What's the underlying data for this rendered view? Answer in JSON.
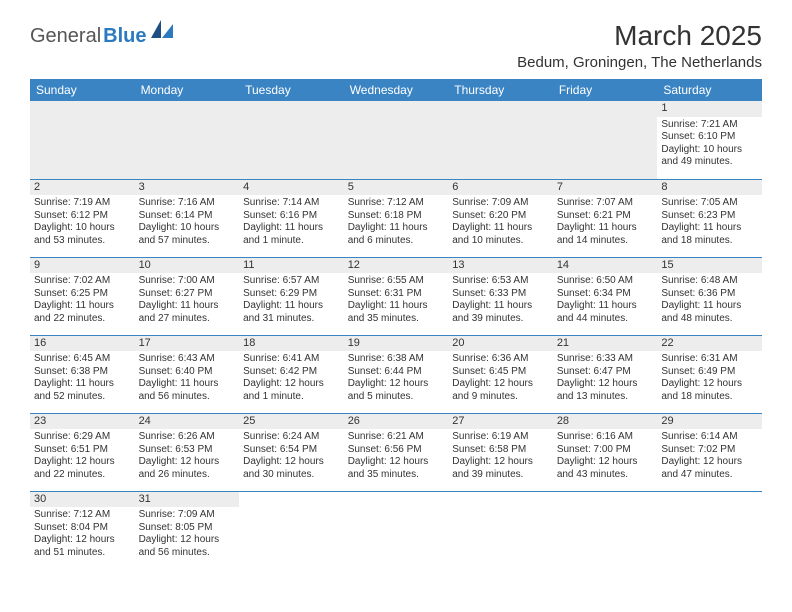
{
  "brand": {
    "part1": "General",
    "part2": "Blue"
  },
  "colors": {
    "header_bg": "#3a84c4",
    "header_fg": "#ffffff",
    "daynum_bg": "#ededed",
    "border": "#3a84c4",
    "brand_gray": "#555555",
    "brand_blue": "#2b7ac0"
  },
  "title": "March 2025",
  "location": "Bedum, Groningen, The Netherlands",
  "weekdays": [
    "Sunday",
    "Monday",
    "Tuesday",
    "Wednesday",
    "Thursday",
    "Friday",
    "Saturday"
  ],
  "weeks": [
    [
      null,
      null,
      null,
      null,
      null,
      null,
      {
        "day": "1",
        "sunrise": "Sunrise: 7:21 AM",
        "sunset": "Sunset: 6:10 PM",
        "daylight": "Daylight: 10 hours and 49 minutes."
      }
    ],
    [
      {
        "day": "2",
        "sunrise": "Sunrise: 7:19 AM",
        "sunset": "Sunset: 6:12 PM",
        "daylight": "Daylight: 10 hours and 53 minutes."
      },
      {
        "day": "3",
        "sunrise": "Sunrise: 7:16 AM",
        "sunset": "Sunset: 6:14 PM",
        "daylight": "Daylight: 10 hours and 57 minutes."
      },
      {
        "day": "4",
        "sunrise": "Sunrise: 7:14 AM",
        "sunset": "Sunset: 6:16 PM",
        "daylight": "Daylight: 11 hours and 1 minute."
      },
      {
        "day": "5",
        "sunrise": "Sunrise: 7:12 AM",
        "sunset": "Sunset: 6:18 PM",
        "daylight": "Daylight: 11 hours and 6 minutes."
      },
      {
        "day": "6",
        "sunrise": "Sunrise: 7:09 AM",
        "sunset": "Sunset: 6:20 PM",
        "daylight": "Daylight: 11 hours and 10 minutes."
      },
      {
        "day": "7",
        "sunrise": "Sunrise: 7:07 AM",
        "sunset": "Sunset: 6:21 PM",
        "daylight": "Daylight: 11 hours and 14 minutes."
      },
      {
        "day": "8",
        "sunrise": "Sunrise: 7:05 AM",
        "sunset": "Sunset: 6:23 PM",
        "daylight": "Daylight: 11 hours and 18 minutes."
      }
    ],
    [
      {
        "day": "9",
        "sunrise": "Sunrise: 7:02 AM",
        "sunset": "Sunset: 6:25 PM",
        "daylight": "Daylight: 11 hours and 22 minutes."
      },
      {
        "day": "10",
        "sunrise": "Sunrise: 7:00 AM",
        "sunset": "Sunset: 6:27 PM",
        "daylight": "Daylight: 11 hours and 27 minutes."
      },
      {
        "day": "11",
        "sunrise": "Sunrise: 6:57 AM",
        "sunset": "Sunset: 6:29 PM",
        "daylight": "Daylight: 11 hours and 31 minutes."
      },
      {
        "day": "12",
        "sunrise": "Sunrise: 6:55 AM",
        "sunset": "Sunset: 6:31 PM",
        "daylight": "Daylight: 11 hours and 35 minutes."
      },
      {
        "day": "13",
        "sunrise": "Sunrise: 6:53 AM",
        "sunset": "Sunset: 6:33 PM",
        "daylight": "Daylight: 11 hours and 39 minutes."
      },
      {
        "day": "14",
        "sunrise": "Sunrise: 6:50 AM",
        "sunset": "Sunset: 6:34 PM",
        "daylight": "Daylight: 11 hours and 44 minutes."
      },
      {
        "day": "15",
        "sunrise": "Sunrise: 6:48 AM",
        "sunset": "Sunset: 6:36 PM",
        "daylight": "Daylight: 11 hours and 48 minutes."
      }
    ],
    [
      {
        "day": "16",
        "sunrise": "Sunrise: 6:45 AM",
        "sunset": "Sunset: 6:38 PM",
        "daylight": "Daylight: 11 hours and 52 minutes."
      },
      {
        "day": "17",
        "sunrise": "Sunrise: 6:43 AM",
        "sunset": "Sunset: 6:40 PM",
        "daylight": "Daylight: 11 hours and 56 minutes."
      },
      {
        "day": "18",
        "sunrise": "Sunrise: 6:41 AM",
        "sunset": "Sunset: 6:42 PM",
        "daylight": "Daylight: 12 hours and 1 minute."
      },
      {
        "day": "19",
        "sunrise": "Sunrise: 6:38 AM",
        "sunset": "Sunset: 6:44 PM",
        "daylight": "Daylight: 12 hours and 5 minutes."
      },
      {
        "day": "20",
        "sunrise": "Sunrise: 6:36 AM",
        "sunset": "Sunset: 6:45 PM",
        "daylight": "Daylight: 12 hours and 9 minutes."
      },
      {
        "day": "21",
        "sunrise": "Sunrise: 6:33 AM",
        "sunset": "Sunset: 6:47 PM",
        "daylight": "Daylight: 12 hours and 13 minutes."
      },
      {
        "day": "22",
        "sunrise": "Sunrise: 6:31 AM",
        "sunset": "Sunset: 6:49 PM",
        "daylight": "Daylight: 12 hours and 18 minutes."
      }
    ],
    [
      {
        "day": "23",
        "sunrise": "Sunrise: 6:29 AM",
        "sunset": "Sunset: 6:51 PM",
        "daylight": "Daylight: 12 hours and 22 minutes."
      },
      {
        "day": "24",
        "sunrise": "Sunrise: 6:26 AM",
        "sunset": "Sunset: 6:53 PM",
        "daylight": "Daylight: 12 hours and 26 minutes."
      },
      {
        "day": "25",
        "sunrise": "Sunrise: 6:24 AM",
        "sunset": "Sunset: 6:54 PM",
        "daylight": "Daylight: 12 hours and 30 minutes."
      },
      {
        "day": "26",
        "sunrise": "Sunrise: 6:21 AM",
        "sunset": "Sunset: 6:56 PM",
        "daylight": "Daylight: 12 hours and 35 minutes."
      },
      {
        "day": "27",
        "sunrise": "Sunrise: 6:19 AM",
        "sunset": "Sunset: 6:58 PM",
        "daylight": "Daylight: 12 hours and 39 minutes."
      },
      {
        "day": "28",
        "sunrise": "Sunrise: 6:16 AM",
        "sunset": "Sunset: 7:00 PM",
        "daylight": "Daylight: 12 hours and 43 minutes."
      },
      {
        "day": "29",
        "sunrise": "Sunrise: 6:14 AM",
        "sunset": "Sunset: 7:02 PM",
        "daylight": "Daylight: 12 hours and 47 minutes."
      }
    ],
    [
      {
        "day": "30",
        "sunrise": "Sunrise: 7:12 AM",
        "sunset": "Sunset: 8:04 PM",
        "daylight": "Daylight: 12 hours and 51 minutes."
      },
      {
        "day": "31",
        "sunrise": "Sunrise: 7:09 AM",
        "sunset": "Sunset: 8:05 PM",
        "daylight": "Daylight: 12 hours and 56 minutes."
      },
      null,
      null,
      null,
      null,
      null
    ]
  ]
}
